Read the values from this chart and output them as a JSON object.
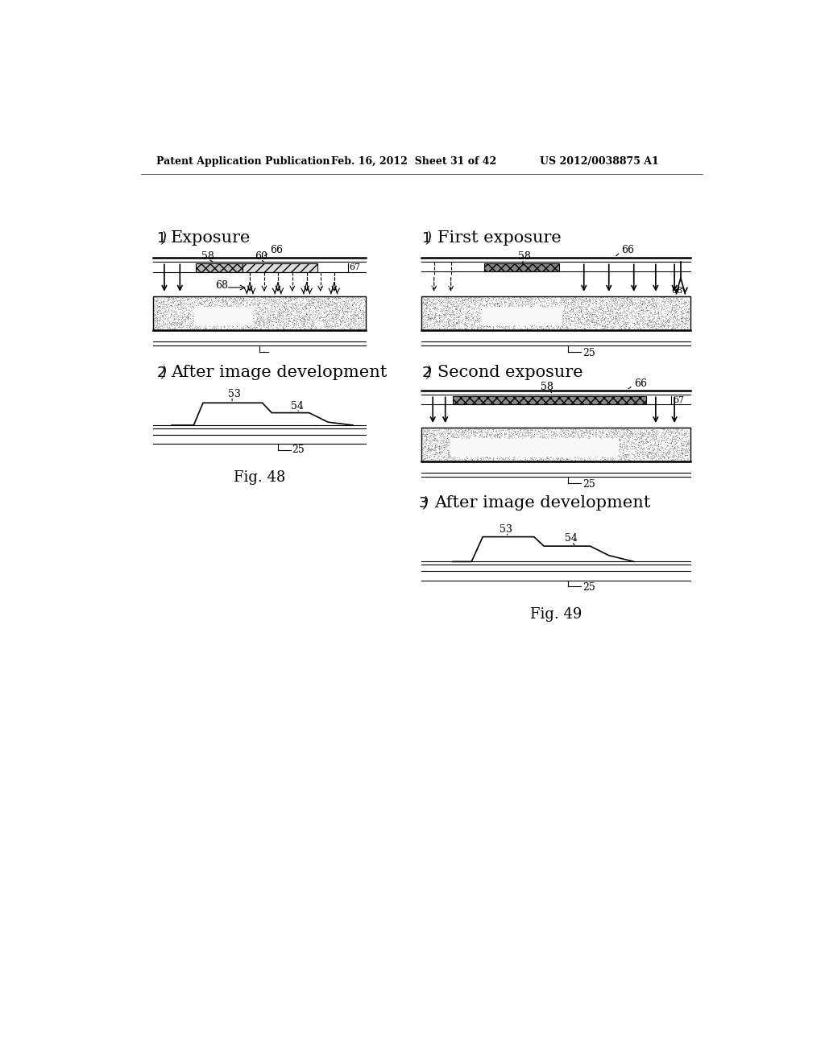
{
  "header_left": "Patent Application Publication",
  "header_center": "Feb. 16, 2012  Sheet 31 of 42",
  "header_right": "US 2012/0038875 A1",
  "fig48_title": "Fig. 48",
  "fig49_title": "Fig. 49",
  "bg_color": "#ffffff"
}
